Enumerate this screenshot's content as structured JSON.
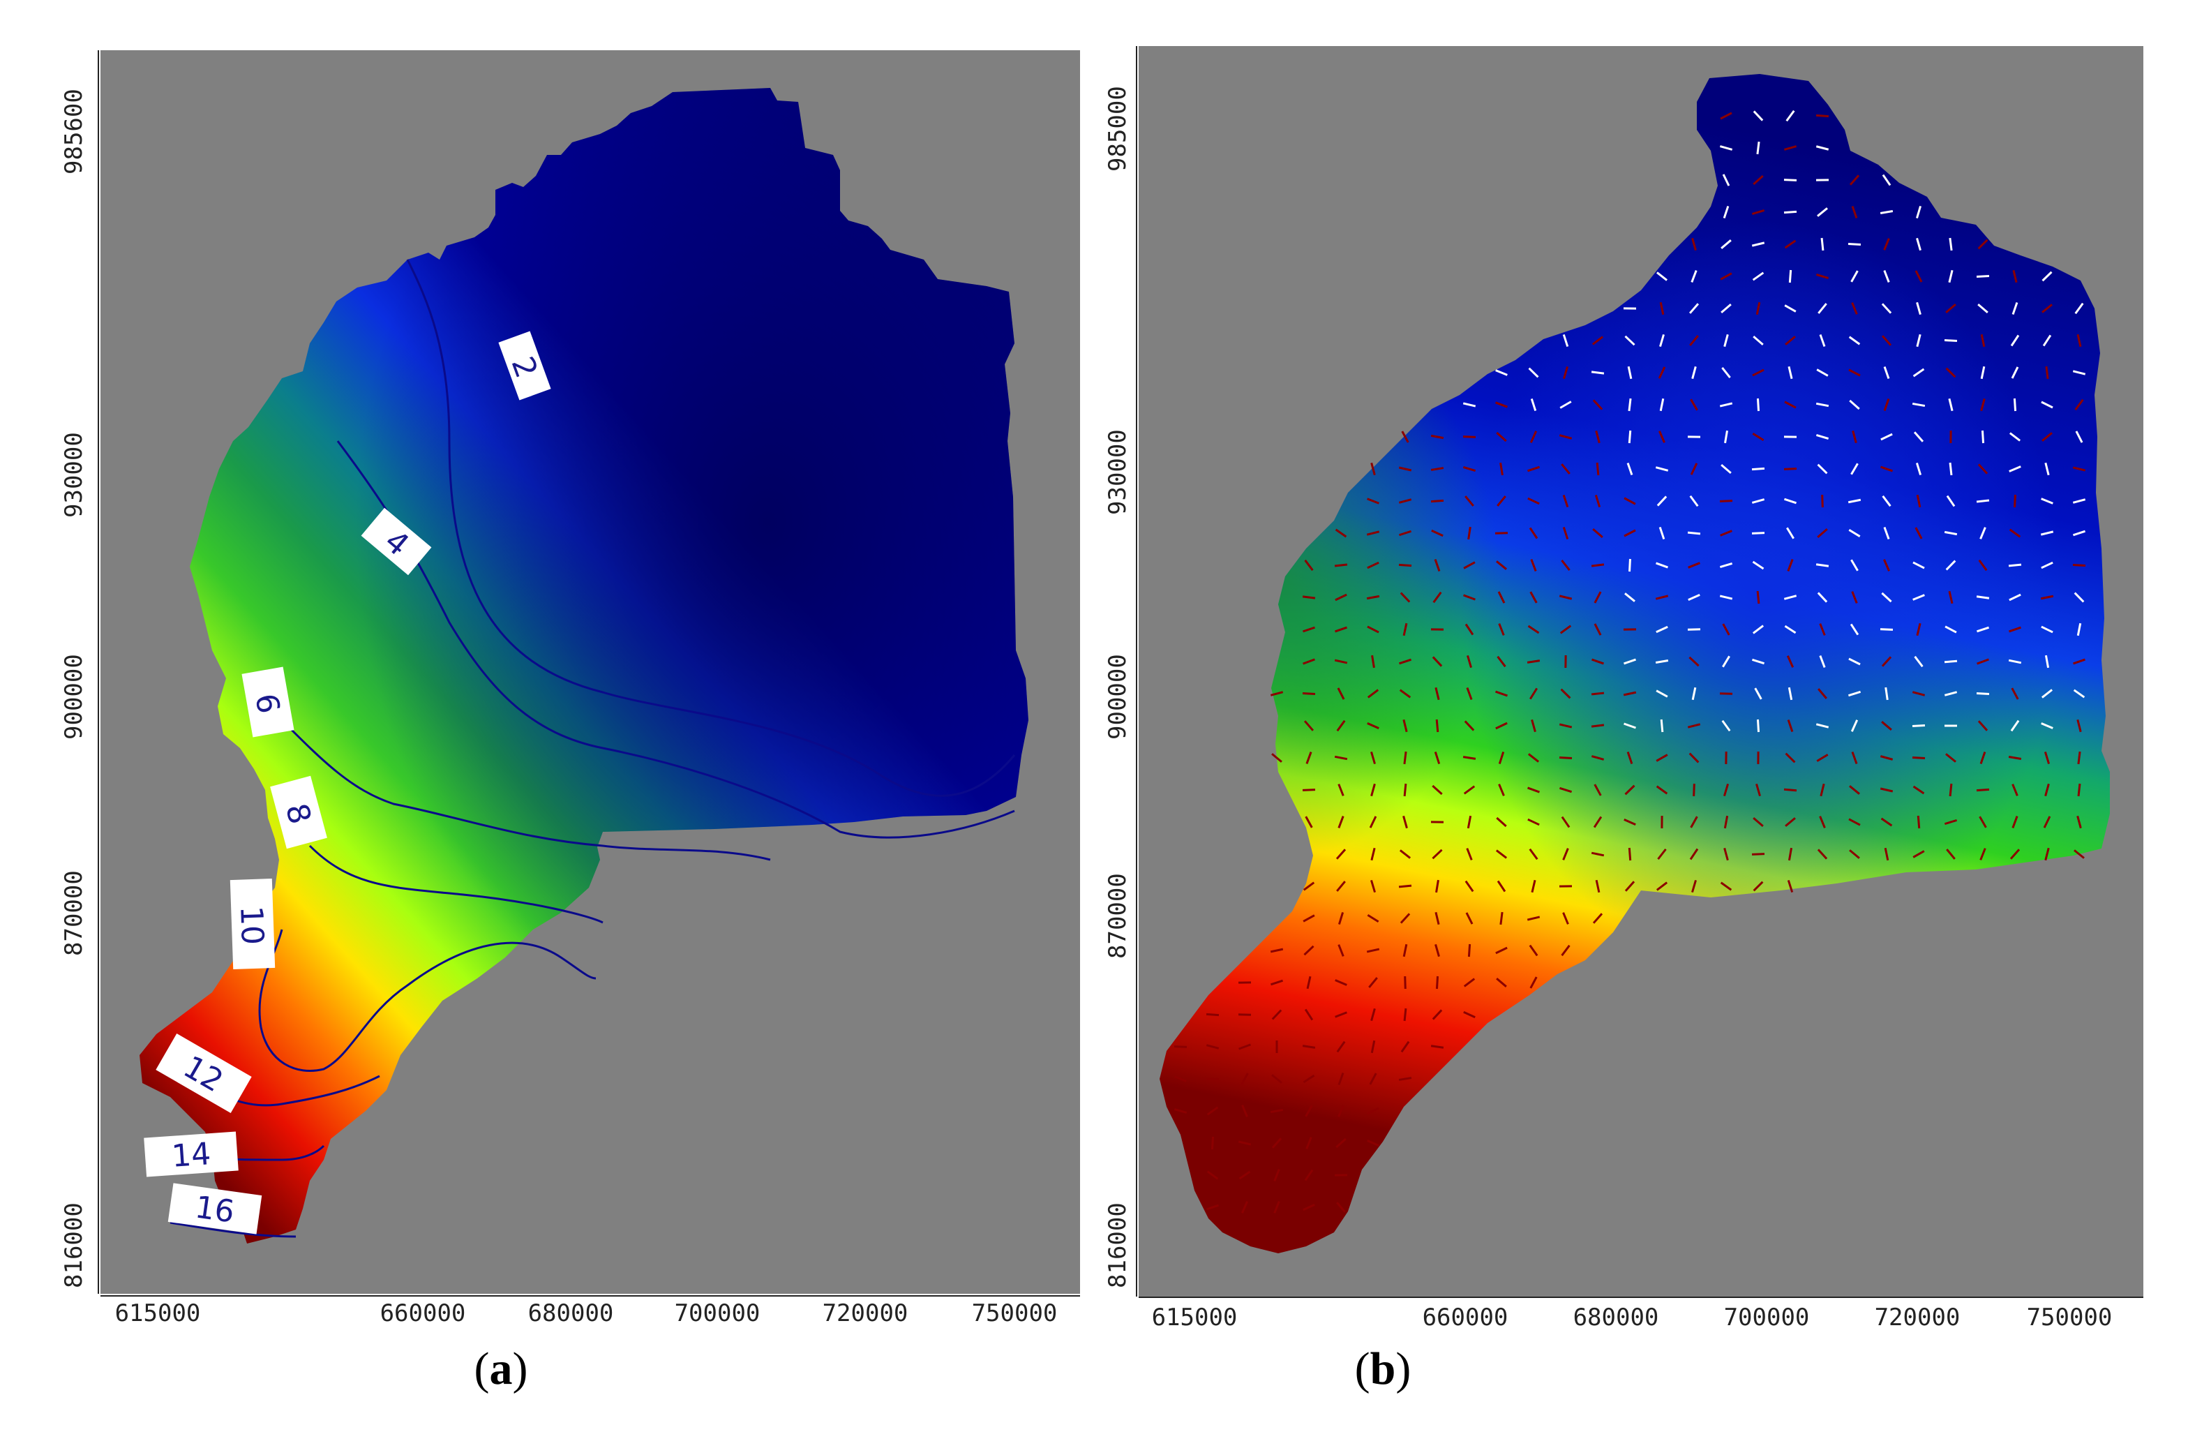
{
  "panels": [
    {
      "id": "a",
      "caption_letter": "a",
      "y_ticks": [
        "985600",
        "930000",
        "900000",
        "870000",
        "816000"
      ],
      "x_ticks": [
        "615000",
        "660000",
        "680000",
        "700000",
        "720000",
        "750000"
      ],
      "contour_labels": [
        "2",
        "4",
        "6",
        "8",
        "10",
        "12",
        "14",
        "16"
      ],
      "background_color": "#808080"
    },
    {
      "id": "b",
      "caption_letter": "b",
      "y_ticks": [
        "985000",
        "930000",
        "900000",
        "870000",
        "816000"
      ],
      "x_ticks": [
        "615000",
        "660000",
        "680000",
        "700000",
        "720000",
        "750000"
      ],
      "background_color": "#808080",
      "arrow_colors": [
        "#ffffff",
        "#8b0000"
      ]
    }
  ],
  "colormap": [
    "#00007a",
    "#0000d0",
    "#1565ff",
    "#0b8a6e",
    "#2ea82e",
    "#44d41a",
    "#a8ff10",
    "#ffe000",
    "#ff7a00",
    "#ee1100",
    "#7a0000"
  ]
}
